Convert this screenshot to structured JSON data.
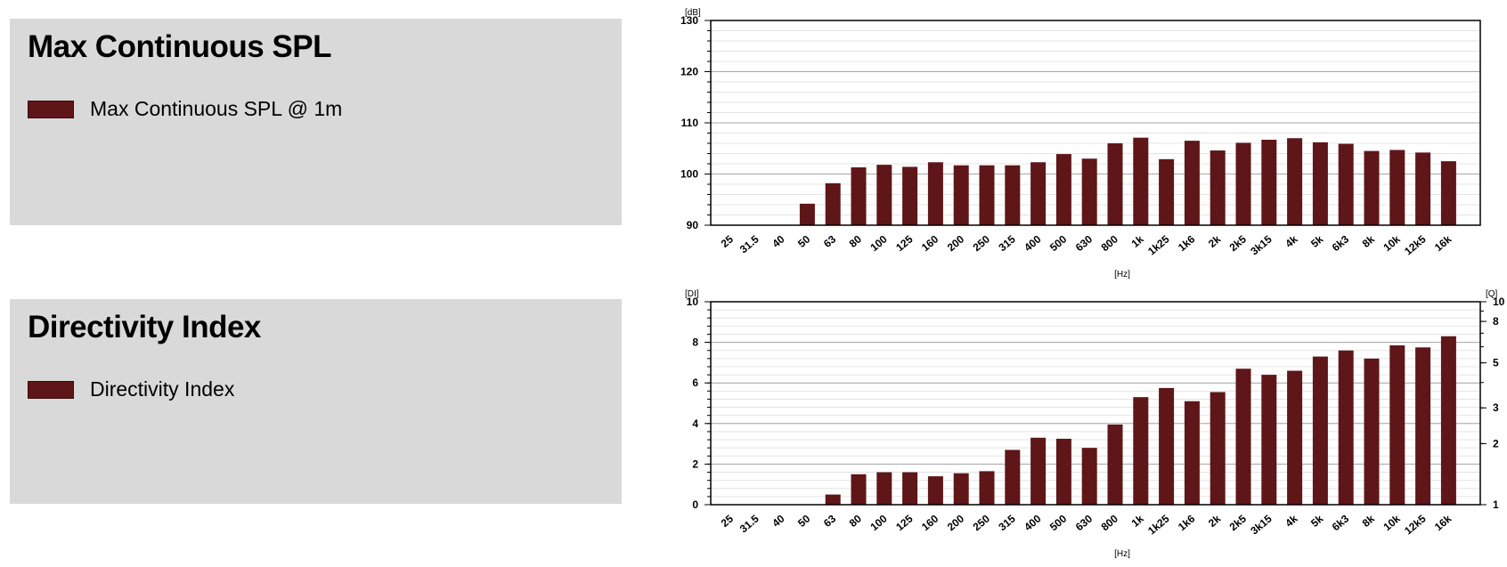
{
  "panels": {
    "spl": {
      "title": "Max Continuous SPL",
      "legend_label": "Max Continuous SPL @ 1m"
    },
    "di": {
      "title": "Directivity Index",
      "legend_label": "Directivity Index"
    }
  },
  "colors": {
    "bar": "#5e1618",
    "panel_bg": "#d9d9d9",
    "grid_major": "#a8a8a8",
    "grid_minor": "#e4e4e4"
  },
  "chart_data": [
    {
      "type": "bar",
      "categories": [
        "25",
        "31.5",
        "40",
        "50",
        "63",
        "80",
        "100",
        "125",
        "160",
        "200",
        "250",
        "315",
        "400",
        "500",
        "630",
        "800",
        "1k",
        "1k25",
        "1k6",
        "2k",
        "2k5",
        "3k15",
        "4k",
        "5k",
        "6k3",
        "8k",
        "10k",
        "12k5",
        "16k"
      ],
      "series": [
        {
          "name": "Max Continuous SPL @ 1m",
          "values": [
            null,
            null,
            null,
            94.2,
            98.2,
            101.3,
            101.8,
            101.4,
            102.3,
            101.7,
            101.7,
            101.7,
            102.3,
            103.9,
            103.0,
            106.0,
            107.1,
            102.9,
            106.5,
            104.6,
            106.1,
            106.7,
            107.0,
            106.2,
            105.9,
            104.5,
            104.7,
            104.2,
            102.5
          ]
        }
      ],
      "title": "",
      "ylabel": "[dB]",
      "xlabel": "[Hz]",
      "ylim": [
        90,
        130
      ],
      "yticks": [
        90,
        100,
        110,
        120,
        130
      ],
      "grid": true
    },
    {
      "type": "bar",
      "categories": [
        "25",
        "31.5",
        "40",
        "50",
        "63",
        "80",
        "100",
        "125",
        "160",
        "200",
        "250",
        "315",
        "400",
        "500",
        "630",
        "800",
        "1k",
        "1k25",
        "1k6",
        "2k",
        "2k5",
        "3k15",
        "4k",
        "5k",
        "6k3",
        "8k",
        "10k",
        "12k5",
        "16k"
      ],
      "series": [
        {
          "name": "Directivity Index",
          "values": [
            null,
            null,
            null,
            null,
            0.5,
            1.5,
            1.6,
            1.6,
            1.4,
            1.55,
            1.65,
            2.7,
            3.3,
            3.25,
            2.8,
            3.95,
            5.3,
            5.75,
            5.1,
            5.55,
            6.7,
            6.4,
            6.6,
            7.3,
            7.6,
            7.2,
            7.85,
            7.75,
            8.3
          ]
        }
      ],
      "title": "",
      "ylabel": "[DI]",
      "y2label": "[Q]",
      "xlabel": "[Hz]",
      "ylim": [
        0,
        10
      ],
      "yticks": [
        0,
        2,
        4,
        6,
        8,
        10
      ],
      "y2ticks": [
        1,
        2,
        3,
        5,
        8,
        10
      ],
      "grid": true
    }
  ]
}
